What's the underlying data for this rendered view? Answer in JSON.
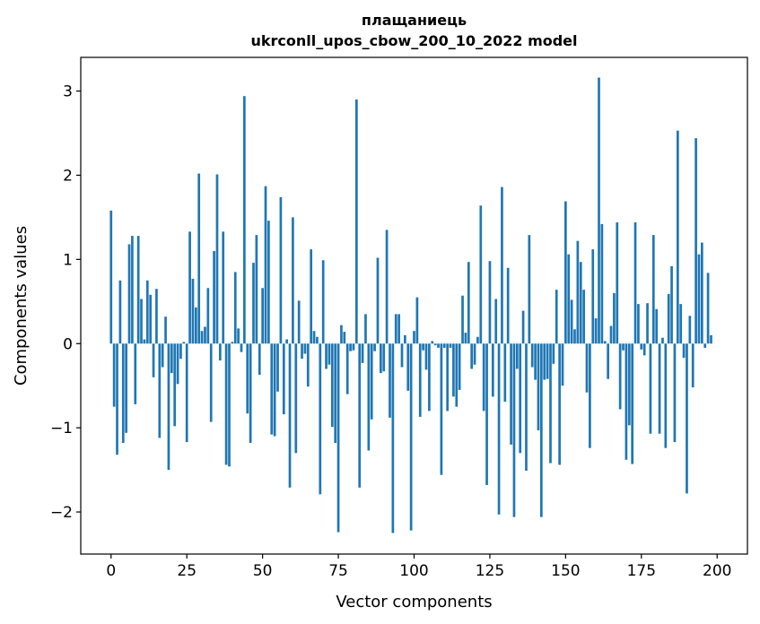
{
  "chart_data": {
    "type": "bar",
    "title_line1": "плащаниець",
    "title_line2": "ukrconll_upos_cbow_200_10_2022 model",
    "xlabel": "Vector components",
    "ylabel": "Components values",
    "xlim": [
      -10,
      210
    ],
    "ylim": [
      -2.5,
      3.4
    ],
    "xticks": [
      0,
      25,
      50,
      75,
      100,
      125,
      150,
      175,
      200
    ],
    "yticks": [
      -2,
      -1,
      0,
      1,
      2,
      3
    ],
    "ytick_labels": [
      "−2",
      "−1",
      "0",
      "1",
      "2",
      "3"
    ],
    "bar_color": "#1f77b4",
    "grid": false,
    "values": [
      1.58,
      -0.75,
      -1.32,
      0.75,
      -1.18,
      -1.06,
      1.18,
      1.28,
      -0.72,
      1.28,
      0.53,
      0.05,
      0.75,
      0.58,
      -0.4,
      0.65,
      -1.12,
      -0.28,
      0.32,
      -1.5,
      -0.35,
      -0.98,
      -0.48,
      -0.18,
      0.02,
      -1.17,
      1.33,
      0.77,
      0.43,
      2.02,
      0.15,
      0.2,
      0.66,
      -0.93,
      1.1,
      2.01,
      -0.2,
      1.33,
      -1.44,
      -1.46,
      0.02,
      0.85,
      0.18,
      -0.1,
      2.94,
      -0.83,
      -1.18,
      0.96,
      1.29,
      -0.37,
      0.66,
      1.87,
      1.46,
      -1.08,
      -1.1,
      -0.57,
      1.74,
      -0.84,
      0.05,
      -1.71,
      1.5,
      -1.3,
      0.51,
      -0.18,
      -0.12,
      -0.51,
      1.12,
      0.15,
      0.08,
      -1.79,
      0.99,
      -0.3,
      -0.25,
      -0.99,
      -1.18,
      -2.24,
      0.22,
      0.14,
      -0.6,
      -0.09,
      -0.08,
      2.9,
      -1.71,
      -0.23,
      0.35,
      -1.27,
      -0.9,
      -0.09,
      1.02,
      -0.35,
      -0.33,
      1.35,
      -0.88,
      -2.25,
      0.35,
      0.35,
      -0.28,
      0.1,
      -0.56,
      -2.22,
      0.15,
      0.55,
      -0.87,
      -0.08,
      -0.31,
      -0.8,
      0.03,
      -0.02,
      -0.05,
      -1.56,
      -0.05,
      -0.8,
      -0.05,
      -0.63,
      -0.75,
      -0.55,
      0.57,
      0.13,
      0.97,
      -0.3,
      -0.25,
      0.08,
      1.64,
      -0.8,
      -1.68,
      0.98,
      -0.63,
      0.53,
      -2.03,
      1.86,
      -0.69,
      0.9,
      -1.2,
      -2.06,
      -0.3,
      -1.3,
      0.39,
      -1.51,
      1.29,
      -0.28,
      -0.43,
      -1.03,
      -2.06,
      -0.43,
      -0.42,
      -1.42,
      -0.24,
      0.64,
      -1.44,
      -0.5,
      1.69,
      1.06,
      0.52,
      0.17,
      1.22,
      0.97,
      0.64,
      -0.58,
      -1.24,
      1.12,
      0.3,
      3.16,
      1.42,
      0.03,
      -0.42,
      0.21,
      0.6,
      1.44,
      -0.78,
      -0.08,
      -1.38,
      -0.97,
      -1.43,
      1.44,
      0.47,
      -0.07,
      -0.14,
      0.48,
      -1.07,
      1.29,
      0.41,
      -1.07,
      0.07,
      -1.24,
      0.59,
      0.92,
      -1.17,
      2.53,
      0.47,
      -0.17,
      -1.78,
      0.33,
      -0.52,
      2.44,
      1.06,
      1.2,
      -0.05,
      0.84,
      0.1
    ]
  }
}
